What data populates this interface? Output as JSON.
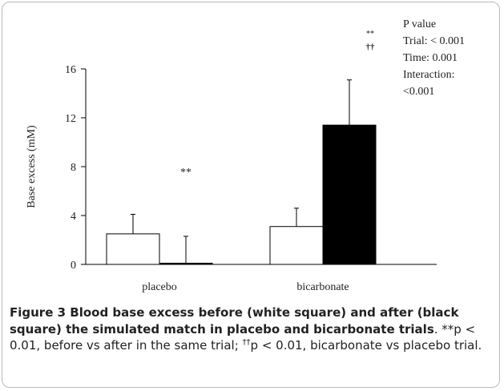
{
  "chart_data": {
    "type": "bar",
    "ylabel": "Base excess (mM)",
    "categories": [
      "placebo",
      "bicarbonate"
    ],
    "series": [
      {
        "color": "#ffffff",
        "values": [
          2.5,
          3.1
        ],
        "errors": [
          1.6,
          1.5
        ]
      },
      {
        "color": "#000000",
        "values": [
          0.1,
          11.4
        ],
        "errors": [
          2.2,
          3.7
        ]
      }
    ],
    "ylim": [
      0,
      16
    ],
    "yticks": [
      0,
      4,
      8,
      12,
      16
    ],
    "annotations": [
      "**",
      "**",
      "††"
    ],
    "pvalue": [
      "P value",
      "Trial: < 0.001",
      "Time: 0.001",
      "Interaction:",
      "<0.001"
    ]
  },
  "caption": {
    "bold": "Figure 3 Blood base excess before (white square) and after (black square) the simulated match in placebo and bicarbonate trials",
    "text1": ". **p < 0.01, before vs after in the same trial; ",
    "sup": "††",
    "text2": "p < 0.01, bicarbonate vs placebo trial."
  }
}
